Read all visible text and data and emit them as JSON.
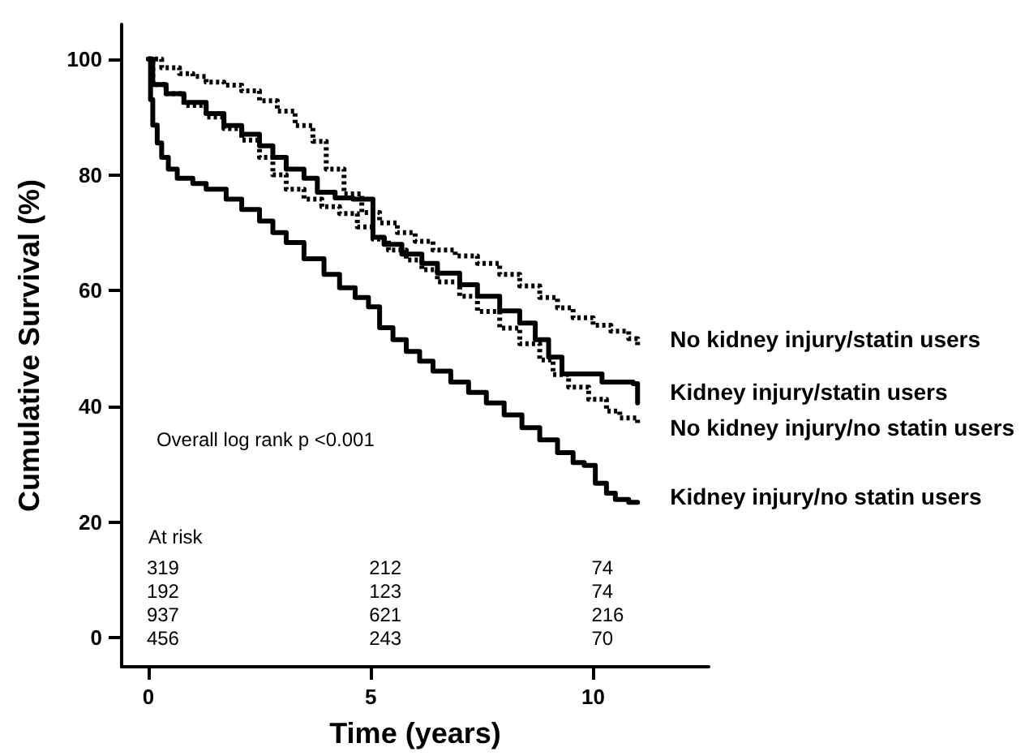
{
  "chart_data": {
    "type": "step",
    "xlabel": "Time (years)",
    "ylabel": "Cumulative Survival (%)",
    "xlim": [
      -0.6,
      12.6
    ],
    "xticks": [
      0,
      5,
      10
    ],
    "ylim": [
      -5,
      106
    ],
    "yticks": [
      0,
      20,
      40,
      60,
      80,
      100
    ],
    "grid": false,
    "legend": false,
    "marker": "none",
    "series": [
      {
        "name": "No kidney injury/statin users",
        "color": "#000000",
        "line_style": "dotted",
        "x": [
          0,
          0.3,
          0.7,
          1.0,
          1.3,
          1.7,
          2.1,
          2.5,
          2.9,
          3.3,
          3.7,
          4.0,
          4.4,
          4.8,
          5.2,
          5.6,
          6.0,
          6.4,
          6.9,
          7.4,
          7.9,
          8.35,
          8.8,
          9.2,
          9.55,
          10.0,
          10.4,
          10.8,
          11
        ],
        "values": [
          100,
          98.5,
          97.5,
          97,
          96,
          95.5,
          94.5,
          92.8,
          91,
          88.5,
          85.8,
          81,
          76.7,
          73.5,
          71.7,
          70,
          68.5,
          67,
          66,
          64.7,
          62.8,
          60.8,
          58.8,
          57,
          55.3,
          54,
          53,
          51.7,
          50
        ]
      },
      {
        "name": "Kidney injury/statin users",
        "color": "#000000",
        "line_style": "solid",
        "x": [
          0,
          0.1,
          0.4,
          0.8,
          1.3,
          1.7,
          2.1,
          2.5,
          2.8,
          3.1,
          3.5,
          3.8,
          4.2,
          4.6,
          5.05,
          5.3,
          5.7,
          6.15,
          6.5,
          7.0,
          7.4,
          7.9,
          8.35,
          8.7,
          9.0,
          9.3,
          9.7,
          10.2,
          10.9,
          11
        ],
        "values": [
          100,
          95.6,
          94,
          92.5,
          90.6,
          88.5,
          87,
          85,
          83,
          81,
          79.4,
          77,
          76,
          75.8,
          69.2,
          68,
          66.3,
          64.7,
          63,
          61,
          59,
          56.5,
          54.4,
          51.5,
          48.5,
          45.6,
          45.6,
          44.2,
          43.9,
          40.6
        ]
      },
      {
        "name": "No kidney injury/no statin users",
        "color": "#000000",
        "line_style": "dotted",
        "x": [
          0,
          0.1,
          0.4,
          0.8,
          1.3,
          1.7,
          2.1,
          2.5,
          2.8,
          3.1,
          3.5,
          3.9,
          4.3,
          4.7,
          5.05,
          5.4,
          5.8,
          6.15,
          6.5,
          7.0,
          7.4,
          7.9,
          8.35,
          8.8,
          9.1,
          9.45,
          9.9,
          10.3,
          10.6,
          11
        ],
        "values": [
          100,
          95.6,
          94,
          92,
          90,
          88,
          86,
          83,
          80,
          77.5,
          75.8,
          74.5,
          73.3,
          71,
          68.9,
          67,
          65.3,
          63.6,
          61.5,
          59,
          56.4,
          53.5,
          50.8,
          48,
          45.5,
          43.3,
          41.2,
          39.2,
          38,
          36.9
        ]
      },
      {
        "name": "Kidney injury/no statin users",
        "color": "#000000",
        "line_style": "solid",
        "x": [
          0,
          0.05,
          0.1,
          0.2,
          0.3,
          0.45,
          0.65,
          1.0,
          1.3,
          1.75,
          2.1,
          2.5,
          2.8,
          3.1,
          3.5,
          3.95,
          4.3,
          4.65,
          4.95,
          5.2,
          5.5,
          5.8,
          6.1,
          6.4,
          6.8,
          7.2,
          7.6,
          8.0,
          8.4,
          8.8,
          9.2,
          9.55,
          9.8,
          10.05,
          10.3,
          10.5,
          10.8,
          11
        ],
        "values": [
          100,
          93,
          88.6,
          85.5,
          83,
          81,
          79.4,
          78.5,
          77.5,
          75.8,
          74,
          72,
          70,
          68.3,
          65.5,
          62.8,
          60.5,
          58.8,
          57.2,
          53.6,
          51.5,
          49.5,
          47.8,
          46.1,
          44.2,
          42.4,
          40.6,
          38.5,
          36.3,
          34.2,
          32,
          30.3,
          29.8,
          26.7,
          25,
          23.9,
          23.4,
          23.3
        ]
      }
    ],
    "annotations": [
      "Overall log rank p <0.001",
      "At risk",
      "319",
      "212",
      "74",
      "192",
      "123",
      "74",
      "937",
      "621",
      "216",
      "456",
      "243",
      "70"
    ]
  }
}
